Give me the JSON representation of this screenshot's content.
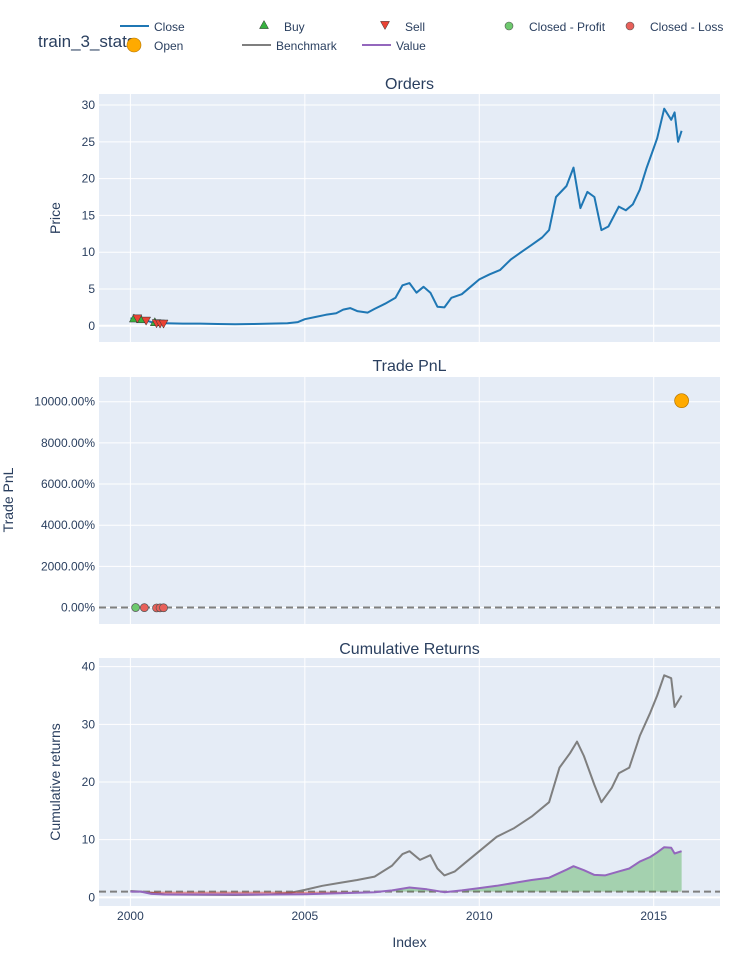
{
  "figure": {
    "title": "train_3_stats",
    "x_axis_title": "Index"
  },
  "legend": {
    "items": [
      {
        "label": "Close",
        "symbol": "line",
        "color": "#1f77b4"
      },
      {
        "label": "Buy",
        "symbol": "triangle-up",
        "color": "#37b13f"
      },
      {
        "label": "Sell",
        "symbol": "triangle-down",
        "color": "#ea4335"
      },
      {
        "label": "Closed - Profit",
        "symbol": "circle",
        "color": "#6ec96e"
      },
      {
        "label": "Closed - Loss",
        "symbol": "circle",
        "color": "#e8605a"
      },
      {
        "label": "Open",
        "symbol": "circle",
        "color": "#ffaa00"
      },
      {
        "label": "Benchmark",
        "symbol": "line",
        "color": "#7f7f7f"
      },
      {
        "label": "Value",
        "symbol": "line",
        "color": "#9467bd"
      }
    ]
  },
  "chart_data": [
    {
      "type": "line",
      "title": "Orders",
      "ylabel": "Price",
      "xlim": [
        1999.1,
        2016.9
      ],
      "ylim": [
        -2.2,
        31.5
      ],
      "x_ticks": [
        2000,
        2005,
        2010,
        2015
      ],
      "y_ticks": [
        0,
        5,
        10,
        15,
        20,
        25,
        30
      ],
      "y_tick_labels": [
        "0",
        "5",
        "10",
        "15",
        "20",
        "25",
        "30"
      ],
      "grid": true,
      "series": [
        {
          "name": "Close",
          "color": "#1f77b4",
          "x": [
            2000.0,
            2000.2,
            2000.4,
            2000.6,
            2000.8,
            2001.0,
            2001.5,
            2002.0,
            2002.5,
            2003.0,
            2003.5,
            2004.0,
            2004.5,
            2004.8,
            2005.0,
            2005.3,
            2005.6,
            2005.9,
            2006.1,
            2006.3,
            2006.5,
            2006.8,
            2007.0,
            2007.3,
            2007.6,
            2007.8,
            2008.0,
            2008.2,
            2008.4,
            2008.6,
            2008.8,
            2009.0,
            2009.2,
            2009.5,
            2009.8,
            2010.0,
            2010.3,
            2010.6,
            2010.9,
            2011.2,
            2011.5,
            2011.8,
            2012.0,
            2012.2,
            2012.5,
            2012.7,
            2012.9,
            2013.1,
            2013.3,
            2013.5,
            2013.7,
            2014.0,
            2014.2,
            2014.4,
            2014.6,
            2014.8,
            2014.95,
            2015.1,
            2015.3,
            2015.5,
            2015.6,
            2015.7,
            2015.8
          ],
          "y": [
            1.0,
            1.0,
            0.8,
            0.5,
            0.4,
            0.35,
            0.3,
            0.3,
            0.25,
            0.2,
            0.25,
            0.3,
            0.35,
            0.5,
            0.9,
            1.2,
            1.5,
            1.7,
            2.2,
            2.4,
            2.0,
            1.8,
            2.3,
            3.0,
            3.8,
            5.5,
            5.8,
            4.5,
            5.3,
            4.5,
            2.6,
            2.5,
            3.8,
            4.3,
            5.5,
            6.3,
            7.0,
            7.6,
            9.0,
            10.0,
            11.0,
            12.0,
            13.0,
            17.5,
            19.0,
            21.5,
            16.0,
            18.2,
            17.5,
            13.0,
            13.5,
            16.2,
            15.7,
            16.5,
            18.5,
            21.5,
            23.5,
            25.5,
            29.5,
            28.0,
            29.0,
            25.0,
            26.5
          ]
        },
        {
          "name": "Buy",
          "color": "#37b13f",
          "marker": "triangle-up",
          "x": [
            2000.1,
            2000.3,
            2000.7
          ],
          "y": [
            1.0,
            0.9,
            0.5
          ]
        },
        {
          "name": "Sell",
          "color": "#ea4335",
          "marker": "triangle-down",
          "x": [
            2000.2,
            2000.45,
            2000.75,
            2000.85,
            2000.95
          ],
          "y": [
            1.0,
            0.7,
            0.35,
            0.3,
            0.3
          ]
        }
      ]
    },
    {
      "type": "scatter",
      "title": "Trade PnL",
      "ylabel": "Trade PnL",
      "xlim": [
        1999.1,
        2016.9
      ],
      "ylim": [
        -800,
        11200
      ],
      "x_ticks": [
        2000,
        2005,
        2010,
        2015
      ],
      "y_ticks": [
        0,
        2000,
        4000,
        6000,
        8000,
        10000
      ],
      "y_tick_labels": [
        "0.00%",
        "2000.00%",
        "4000.00%",
        "6000.00%",
        "8000.00%",
        "10000.00%"
      ],
      "reference_line": 0,
      "grid": true,
      "series": [
        {
          "name": "Closed - Profit",
          "color": "#6ec96e",
          "x": [
            2000.15
          ],
          "y": [
            0
          ]
        },
        {
          "name": "Closed - Loss",
          "color": "#e8605a",
          "x": [
            2000.4,
            2000.75,
            2000.85,
            2000.95
          ],
          "y": [
            -5,
            -20,
            -15,
            -10
          ]
        },
        {
          "name": "Open",
          "color": "#ffaa00",
          "x": [
            2015.8
          ],
          "y": [
            10050
          ]
        }
      ]
    },
    {
      "type": "area",
      "title": "Cumulative Returns",
      "ylabel": "Cumulative returns",
      "xlabel": "Index",
      "xlim": [
        1999.1,
        2016.9
      ],
      "ylim": [
        -1.5,
        41.5
      ],
      "x_ticks": [
        2000,
        2005,
        2010,
        2015
      ],
      "y_ticks": [
        0,
        10,
        20,
        30,
        40
      ],
      "y_tick_labels": [
        "0",
        "10",
        "20",
        "30",
        "40"
      ],
      "reference_line": 1,
      "grid": true,
      "series": [
        {
          "name": "Benchmark",
          "color": "#7f7f7f",
          "x": [
            2000.0,
            2000.3,
            2000.6,
            2001.0,
            2002.0,
            2003.0,
            2004.0,
            2004.5,
            2005.0,
            2005.5,
            2006.0,
            2006.5,
            2007.0,
            2007.5,
            2007.8,
            2008.0,
            2008.3,
            2008.6,
            2008.8,
            2009.0,
            2009.3,
            2009.6,
            2010.0,
            2010.5,
            2011.0,
            2011.5,
            2012.0,
            2012.3,
            2012.6,
            2012.8,
            2013.0,
            2013.3,
            2013.5,
            2013.8,
            2014.0,
            2014.3,
            2014.6,
            2014.9,
            2015.1,
            2015.3,
            2015.5,
            2015.6,
            2015.8
          ],
          "y": [
            1.1,
            1.0,
            0.8,
            0.5,
            0.45,
            0.4,
            0.5,
            0.7,
            1.3,
            2.0,
            2.5,
            3.0,
            3.6,
            5.5,
            7.5,
            8.0,
            6.5,
            7.3,
            5.0,
            3.8,
            4.5,
            6.0,
            8.0,
            10.5,
            12.0,
            14.0,
            16.5,
            22.5,
            25.0,
            27.0,
            24.5,
            19.5,
            16.5,
            19.0,
            21.5,
            22.5,
            28.0,
            32.0,
            35.0,
            38.5,
            38.0,
            33.0,
            35.0
          ]
        },
        {
          "name": "Value",
          "color": "#9467bd",
          "x": [
            2000.0,
            2000.3,
            2000.6,
            2001.0,
            2002.0,
            2003.0,
            2004.0,
            2005.0,
            2006.0,
            2007.0,
            2007.5,
            2008.0,
            2008.5,
            2009.0,
            2009.5,
            2010.0,
            2010.5,
            2011.0,
            2011.5,
            2012.0,
            2012.5,
            2012.7,
            2013.0,
            2013.3,
            2013.6,
            2014.0,
            2014.3,
            2014.6,
            2014.9,
            2015.1,
            2015.3,
            2015.5,
            2015.6,
            2015.8
          ],
          "y": [
            1.0,
            1.0,
            0.6,
            0.5,
            0.5,
            0.5,
            0.5,
            0.55,
            0.7,
            0.9,
            1.2,
            1.7,
            1.4,
            0.9,
            1.2,
            1.6,
            2.0,
            2.5,
            3.0,
            3.4,
            4.8,
            5.4,
            4.7,
            3.9,
            3.8,
            4.5,
            5.0,
            6.2,
            7.0,
            7.8,
            8.7,
            8.6,
            7.6,
            8.0
          ]
        }
      ]
    }
  ]
}
